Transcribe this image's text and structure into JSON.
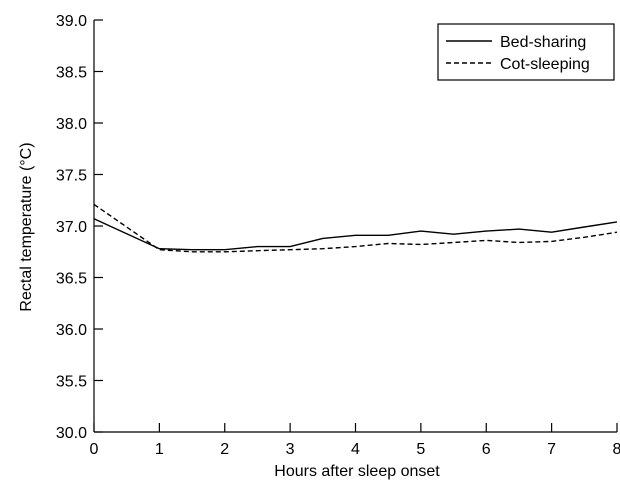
{
  "chart_data": {
    "type": "line",
    "title": "",
    "xlabel": "Hours after sleep onset",
    "ylabel": "Rectal temperature (°C)",
    "xlim": [
      0,
      8
    ],
    "x_ticks": [
      "0",
      "1",
      "2",
      "3",
      "4",
      "5",
      "6",
      "7",
      "8"
    ],
    "y_ticks": [
      "30.0",
      "35.5",
      "36.0",
      "36.5",
      "37.0",
      "37.5",
      "38.0",
      "38.5",
      "39.0"
    ],
    "y_axis_note": "broken axis: 30.0 at bottom, 35.5–39.0 linear above",
    "grid": false,
    "legend_position": "top-right",
    "series": [
      {
        "name": "Bed-sharing",
        "style": "solid",
        "color": "#000000",
        "x": [
          0,
          1,
          1.5,
          2,
          2.5,
          3,
          3.5,
          4,
          4.5,
          5,
          5.5,
          6,
          6.5,
          7,
          7.5,
          8
        ],
        "y": [
          37.07,
          36.78,
          36.77,
          36.77,
          36.8,
          36.8,
          36.88,
          36.91,
          36.91,
          36.95,
          36.92,
          36.95,
          36.97,
          36.94,
          36.99,
          37.04
        ]
      },
      {
        "name": "Cot-sleeping",
        "style": "dashed",
        "color": "#000000",
        "x": [
          0,
          1,
          1.5,
          2,
          2.5,
          3,
          3.5,
          4,
          4.5,
          5,
          5.5,
          6,
          6.5,
          7,
          7.5,
          8
        ],
        "y": [
          37.21,
          36.77,
          36.75,
          36.75,
          36.76,
          36.77,
          36.78,
          36.8,
          36.83,
          36.82,
          36.84,
          36.86,
          36.84,
          36.85,
          36.89,
          36.94
        ]
      }
    ]
  }
}
